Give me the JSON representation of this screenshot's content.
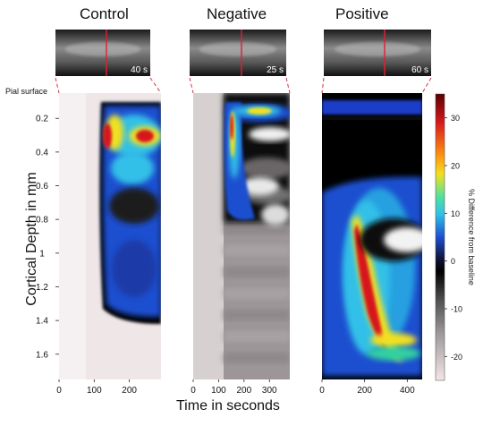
{
  "chart_data": {
    "type": "heatmap",
    "panels": [
      {
        "title": "Control",
        "thumbnail_time": "40 s",
        "xticks": [
          0,
          100,
          200
        ],
        "xlim": [
          0,
          290
        ],
        "response_start": 120,
        "colormap_cmin": -25
      },
      {
        "title": "Negative",
        "thumbnail_time": "25 s",
        "xticks": [
          0,
          100,
          200,
          300
        ],
        "xlim": [
          0,
          380
        ],
        "response_start": 130,
        "colormap_cmin": -25
      },
      {
        "title": "Positive",
        "thumbnail_time": "60 s",
        "xticks": [
          0,
          200,
          400
        ],
        "xlim": [
          0,
          470
        ],
        "response_start": 0,
        "colormap_cmin": -25
      }
    ],
    "ylabel": "Cortical Depth in mm",
    "xlabel": "Time in seconds",
    "y_top_label": "Pial surface",
    "yticks": [
      0.2,
      0.4,
      0.6,
      0.8,
      1,
      1.2,
      1.4,
      1.6
    ],
    "ylim": [
      0.05,
      1.75
    ],
    "colorbar": {
      "label": "% Difference from baseline",
      "ticks": [
        30,
        20,
        10,
        0,
        -10,
        -20
      ],
      "range": [
        -25,
        35
      ]
    },
    "colors": {
      "red": "#d7191c",
      "yellow": "#f0e020",
      "cyan": "#30c0e8",
      "blue": "#1e4fd0",
      "black": "#000000",
      "white": "#ffffff",
      "pink": "#f4e6e8"
    }
  }
}
